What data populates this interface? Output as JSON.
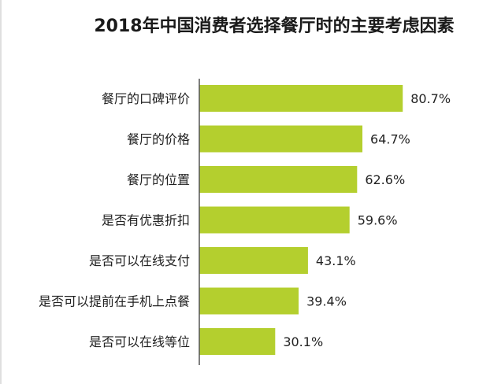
{
  "chart_data": {
    "type": "bar",
    "orientation": "horizontal",
    "title": "2018年中国消费者选择餐厅时的主要考虑因素",
    "categories": [
      "餐厅的口碑评价",
      "餐厅的价格",
      "餐厅的位置",
      "是否有优惠折扣",
      "是否可以在线支付",
      "是否可以提前在手机上点餐",
      "是否可以在线等位"
    ],
    "values": [
      80.7,
      64.7,
      62.6,
      59.6,
      43.1,
      39.4,
      30.1
    ],
    "value_labels": [
      "80.7%",
      "64.7%",
      "62.6%",
      "59.6%",
      "43.1%",
      "39.4%",
      "30.1%"
    ],
    "unit": "%",
    "xlim": [
      0,
      100
    ],
    "grid": false,
    "legend": "none",
    "bar_color": "#b4cf2e",
    "axis_color": "#555555"
  }
}
